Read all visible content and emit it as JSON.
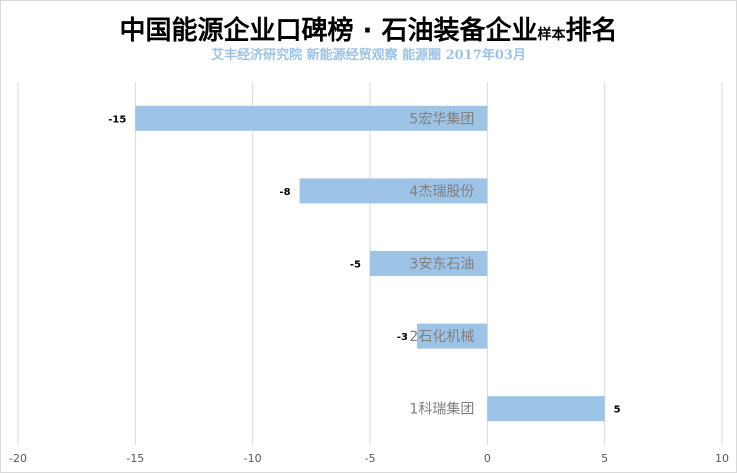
{
  "title": {
    "main": "中国能源企业口碑榜 · 石油装备企业",
    "small": "样本",
    "tail": "排名"
  },
  "subtitle": "艾丰经济研究院 新能源经贸观察 能源圈 2017年03月",
  "chart_data": {
    "type": "bar",
    "orientation": "horizontal",
    "categories": [
      "5宏华集团",
      "4杰瑞股份",
      "3安东石油",
      "2石化机械",
      "1科瑞集团"
    ],
    "values": [
      -15,
      -8,
      -5,
      -3,
      5
    ],
    "value_labels": [
      "-15",
      "-8",
      "-5",
      "-3",
      "5"
    ],
    "xlim": [
      -20,
      10
    ],
    "xticks": [
      -20,
      -15,
      -10,
      -5,
      0,
      5,
      10
    ],
    "xtick_labels": [
      "-20",
      "-15",
      "-10",
      "-5",
      "0",
      "5",
      "10"
    ],
    "grid": "vertical",
    "bar_color": "#9dc3e6",
    "grid_color": "#d9d9d9",
    "legend": "none"
  }
}
